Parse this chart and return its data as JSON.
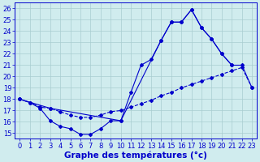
{
  "title": "Graphe des températures (°c)",
  "xlabel_hours": [
    0,
    1,
    2,
    3,
    4,
    5,
    6,
    7,
    8,
    9,
    10,
    11,
    12,
    13,
    14,
    15,
    16,
    17,
    18,
    19,
    20,
    21,
    22,
    23
  ],
  "ylim": [
    14.5,
    26.5
  ],
  "yticks": [
    15,
    16,
    17,
    18,
    19,
    20,
    21,
    22,
    23,
    24,
    25,
    26
  ],
  "line1": {
    "x": [
      0,
      1,
      2,
      3,
      4,
      5,
      6,
      7,
      8,
      9,
      10,
      11,
      12,
      13,
      14,
      15,
      16,
      17,
      18,
      19,
      20,
      21
    ],
    "y": [
      18.0,
      17.7,
      17.2,
      16.1,
      15.6,
      15.4,
      14.9,
      14.9,
      15.4,
      16.1,
      16.1,
      18.6,
      21.0,
      21.5,
      23.2,
      24.8,
      24.8,
      25.9,
      24.3,
      23.3,
      22.0,
      21.0
    ],
    "color": "#0000cc",
    "marker": "D",
    "markersize": 2.0,
    "linewidth": 0.8
  },
  "line2": {
    "x": [
      0,
      1,
      2,
      3,
      4,
      5,
      6,
      7,
      8,
      9,
      10,
      11,
      12,
      13,
      14,
      15,
      16,
      17,
      18,
      19,
      20,
      21,
      22,
      23
    ],
    "y": [
      18.0,
      17.7,
      17.3,
      17.2,
      16.9,
      16.6,
      16.4,
      16.4,
      16.6,
      16.9,
      17.0,
      17.3,
      17.6,
      17.9,
      18.3,
      18.6,
      19.0,
      19.3,
      19.6,
      19.9,
      20.2,
      20.5,
      20.8,
      19.0
    ],
    "color": "#0000cc",
    "marker": "D",
    "markersize": 2.0,
    "linewidth": 0.8,
    "linestyle": "--"
  },
  "line3": {
    "x": [
      0,
      3,
      10,
      14,
      15,
      16,
      17,
      18,
      19,
      20,
      21,
      22,
      23
    ],
    "y": [
      18.0,
      17.2,
      16.1,
      23.2,
      24.8,
      24.8,
      25.9,
      24.3,
      23.3,
      22.0,
      21.0,
      21.0,
      19.0
    ],
    "color": "#0000cc",
    "marker": "D",
    "markersize": 2.0,
    "linewidth": 0.8
  },
  "bg_color": "#d0ecee",
  "grid_color": "#a8cdd0",
  "axis_color": "#0000cc",
  "label_color": "#0000cc",
  "title_color": "#0000cc",
  "title_fontsize": 7.5,
  "tick_fontsize": 6.0
}
